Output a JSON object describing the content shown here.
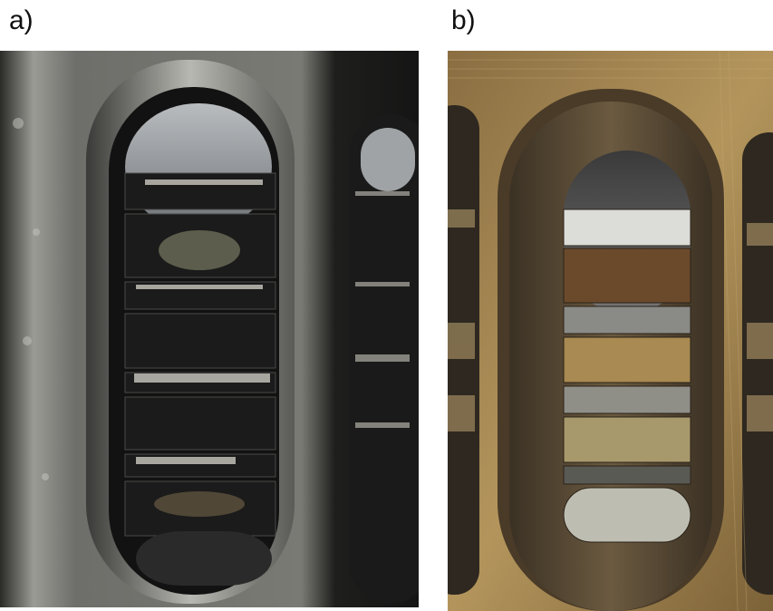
{
  "panels": [
    {
      "label": "a)",
      "photo_icon": "cylinder-liner-port-dark-deposits"
    },
    {
      "label": "b)",
      "photo_icon": "cylinder-liner-port-bronze-surface"
    }
  ],
  "colors": {
    "background": "#ffffff",
    "label_text": "#111111",
    "photo_a_metal": "#8a8a86",
    "photo_a_port": "#141414",
    "photo_b_metal": "#a88a55",
    "photo_b_port": "#2a2620"
  }
}
